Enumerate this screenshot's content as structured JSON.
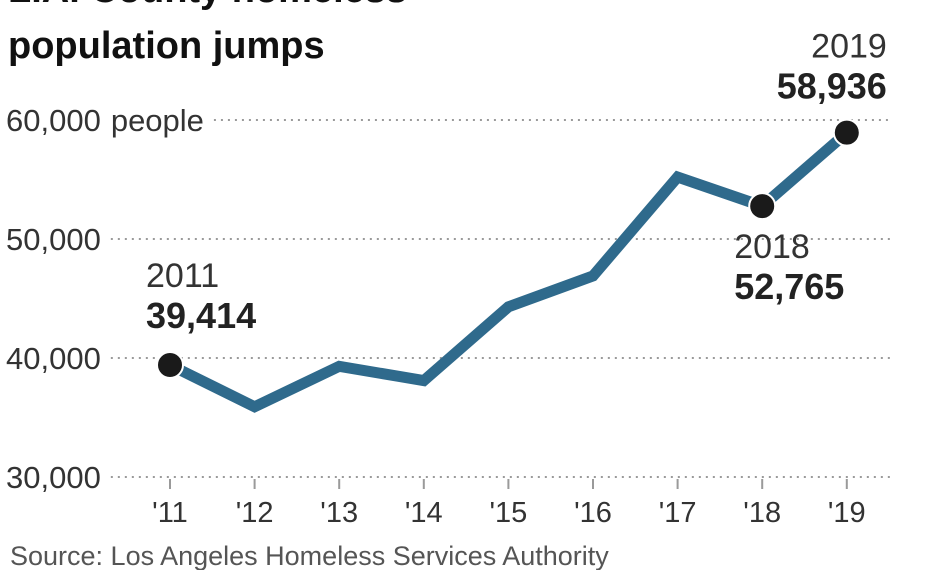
{
  "chart_data": {
    "type": "line",
    "title_lines": [
      "L.A. County homeless",
      "population jumps"
    ],
    "x": [
      "'11",
      "'12",
      "'13",
      "'14",
      "'15",
      "'16",
      "'17",
      "'18",
      "'19"
    ],
    "series": [
      {
        "values": [
          39414,
          35900,
          39300,
          38100,
          44300,
          46900,
          55200,
          52765,
          58936
        ]
      }
    ],
    "ylim": [
      30000,
      60000
    ],
    "yticks": [
      {
        "value": 60000,
        "label": "60,000",
        "suffix": "people"
      },
      {
        "value": 50000,
        "label": "50,000",
        "suffix": ""
      },
      {
        "value": 40000,
        "label": "40,000",
        "suffix": ""
      },
      {
        "value": 30000,
        "label": "30,000",
        "suffix": ""
      }
    ],
    "annotations": [
      {
        "index": 0,
        "year": "2011",
        "value": "39,414"
      },
      {
        "index": 7,
        "year": "2018",
        "value": "52,765"
      },
      {
        "index": 8,
        "year": "2019",
        "value": "58,936"
      }
    ],
    "grid": true,
    "line_color": "#2f6a8c",
    "marker_color": "#1a1a1a",
    "source": "Source: Los Angeles Homeless Services Authority"
  }
}
